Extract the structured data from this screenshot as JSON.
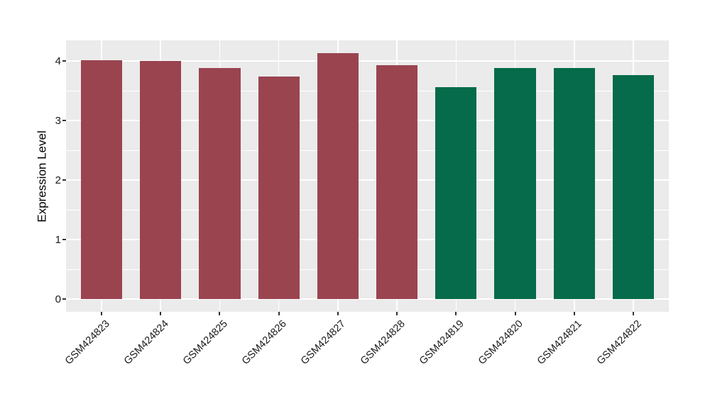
{
  "chart_data": {
    "type": "bar",
    "ylabel": "Expression Level",
    "categories": [
      "GSM424823",
      "GSM424824",
      "GSM424825",
      "GSM424826",
      "GSM424827",
      "GSM424828",
      "GSM424819",
      "GSM424820",
      "GSM424821",
      "GSM424822"
    ],
    "values": [
      4.02,
      4.0,
      3.88,
      3.74,
      4.14,
      3.93,
      3.56,
      3.89,
      3.88,
      3.77
    ],
    "bar_groups": [
      "group1",
      "group1",
      "group1",
      "group1",
      "group1",
      "group1",
      "group2",
      "group2",
      "group2",
      "group2"
    ],
    "group_colors": {
      "group1": "#9A4450",
      "group2": "#066B4A"
    },
    "y_ticks": [
      0,
      1,
      2,
      3,
      4
    ],
    "y_minor_ticks": [
      0.5,
      1.5,
      2.5,
      3.5
    ],
    "ylim": [
      -0.21,
      4.35
    ],
    "bar_width_ratio": 0.7,
    "x_label_rotation_deg": -45,
    "grid": true,
    "legend": "none",
    "panel_background": "#EBEBEB",
    "grid_major_color": "#FFFFFF",
    "grid_minor_color": "#FFFFFF",
    "axis_text_color": "#1a1a1a",
    "tick_mark_color": "#333333"
  }
}
